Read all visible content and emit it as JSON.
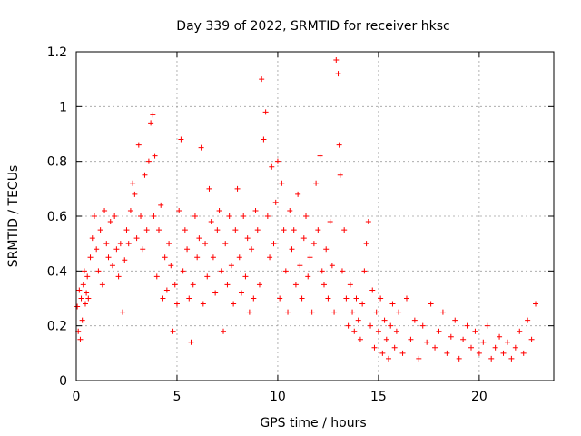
{
  "chart_data": {
    "type": "scatter",
    "title": "Day 339 of 2022, SRMTID for receiver hksc",
    "xlabel": "GPS time / hours",
    "ylabel": "SRMTID / TECUs",
    "xlim": [
      0,
      23.7
    ],
    "ylim": [
      0,
      1.2
    ],
    "xticks": [
      0,
      5,
      10,
      15,
      20
    ],
    "xtick_labels": [
      "0",
      "5",
      "10",
      "15",
      "20"
    ],
    "yticks": [
      0,
      0.2,
      0.4,
      0.6,
      0.8,
      1.0,
      1.2
    ],
    "ytick_labels": [
      "0",
      "0.2",
      "0.4",
      "0.6",
      "0.8",
      "1",
      "1.2"
    ],
    "grid": true,
    "marker": "+",
    "color": "#ff0000",
    "series": [
      {
        "name": "SRMTID",
        "x": [
          0.05,
          0.1,
          0.15,
          0.2,
          0.25,
          0.3,
          0.35,
          0.4,
          0.45,
          0.5,
          0.55,
          0.6,
          0.7,
          0.8,
          0.9,
          1.0,
          1.1,
          1.2,
          1.3,
          1.4,
          1.5,
          1.6,
          1.7,
          1.8,
          1.9,
          2.0,
          2.1,
          2.2,
          2.3,
          2.4,
          2.5,
          2.6,
          2.7,
          2.8,
          2.9,
          3.0,
          3.1,
          3.2,
          3.3,
          3.4,
          3.5,
          3.6,
          3.7,
          3.8,
          3.85,
          3.9,
          4.0,
          4.1,
          4.2,
          4.3,
          4.4,
          4.5,
          4.6,
          4.7,
          4.8,
          4.9,
          5.0,
          5.1,
          5.2,
          5.3,
          5.4,
          5.5,
          5.6,
          5.7,
          5.8,
          5.9,
          6.0,
          6.1,
          6.2,
          6.3,
          6.4,
          6.5,
          6.6,
          6.7,
          6.8,
          6.9,
          7.0,
          7.1,
          7.2,
          7.3,
          7.4,
          7.5,
          7.6,
          7.7,
          7.8,
          7.9,
          8.0,
          8.1,
          8.2,
          8.3,
          8.4,
          8.5,
          8.6,
          8.7,
          8.8,
          8.9,
          9.0,
          9.1,
          9.2,
          9.3,
          9.4,
          9.5,
          9.6,
          9.7,
          9.8,
          9.9,
          10.0,
          10.1,
          10.2,
          10.3,
          10.4,
          10.5,
          10.6,
          10.7,
          10.8,
          10.9,
          11.0,
          11.1,
          11.2,
          11.3,
          11.4,
          11.5,
          11.6,
          11.7,
          11.8,
          11.9,
          12.0,
          12.1,
          12.2,
          12.3,
          12.4,
          12.5,
          12.6,
          12.7,
          12.8,
          12.9,
          13.0,
          13.05,
          13.1,
          13.2,
          13.3,
          13.4,
          13.5,
          13.6,
          13.7,
          13.8,
          13.9,
          14.0,
          14.1,
          14.2,
          14.3,
          14.4,
          14.5,
          14.6,
          14.7,
          14.8,
          14.9,
          15.0,
          15.1,
          15.2,
          15.3,
          15.4,
          15.5,
          15.6,
          15.7,
          15.8,
          15.9,
          16.0,
          16.2,
          16.4,
          16.6,
          16.8,
          17.0,
          17.2,
          17.4,
          17.6,
          17.8,
          18.0,
          18.2,
          18.4,
          18.6,
          18.8,
          19.0,
          19.2,
          19.4,
          19.6,
          19.8,
          20.0,
          20.2,
          20.4,
          20.6,
          20.8,
          21.0,
          21.2,
          21.4,
          21.6,
          21.8,
          22.0,
          22.2,
          22.4,
          22.6,
          22.8
        ],
        "y": [
          0.27,
          0.18,
          0.33,
          0.15,
          0.3,
          0.22,
          0.35,
          0.4,
          0.28,
          0.32,
          0.38,
          0.3,
          0.45,
          0.52,
          0.6,
          0.48,
          0.4,
          0.55,
          0.35,
          0.62,
          0.5,
          0.45,
          0.58,
          0.42,
          0.6,
          0.48,
          0.38,
          0.5,
          0.25,
          0.44,
          0.55,
          0.5,
          0.62,
          0.72,
          0.68,
          0.52,
          0.86,
          0.6,
          0.48,
          0.75,
          0.55,
          0.8,
          0.94,
          0.97,
          0.6,
          0.82,
          0.38,
          0.55,
          0.64,
          0.3,
          0.45,
          0.33,
          0.5,
          0.42,
          0.18,
          0.35,
          0.28,
          0.62,
          0.88,
          0.4,
          0.55,
          0.48,
          0.3,
          0.14,
          0.35,
          0.6,
          0.45,
          0.52,
          0.85,
          0.28,
          0.5,
          0.38,
          0.7,
          0.58,
          0.45,
          0.32,
          0.55,
          0.62,
          0.4,
          0.18,
          0.5,
          0.35,
          0.6,
          0.42,
          0.28,
          0.55,
          0.7,
          0.45,
          0.32,
          0.6,
          0.38,
          0.52,
          0.25,
          0.48,
          0.3,
          0.62,
          0.55,
          0.35,
          1.1,
          0.88,
          0.98,
          0.6,
          0.45,
          0.78,
          0.5,
          0.65,
          0.8,
          0.3,
          0.72,
          0.55,
          0.4,
          0.25,
          0.62,
          0.48,
          0.55,
          0.35,
          0.68,
          0.42,
          0.3,
          0.52,
          0.6,
          0.38,
          0.45,
          0.25,
          0.5,
          0.72,
          0.55,
          0.82,
          0.4,
          0.35,
          0.48,
          0.3,
          0.58,
          0.42,
          0.25,
          1.17,
          1.12,
          0.86,
          0.75,
          0.4,
          0.55,
          0.3,
          0.2,
          0.35,
          0.25,
          0.18,
          0.3,
          0.22,
          0.15,
          0.28,
          0.4,
          0.5,
          0.58,
          0.2,
          0.33,
          0.12,
          0.25,
          0.18,
          0.3,
          0.1,
          0.22,
          0.15,
          0.08,
          0.2,
          0.28,
          0.12,
          0.18,
          0.25,
          0.1,
          0.3,
          0.15,
          0.22,
          0.08,
          0.2,
          0.14,
          0.28,
          0.12,
          0.18,
          0.25,
          0.1,
          0.16,
          0.22,
          0.08,
          0.15,
          0.2,
          0.12,
          0.18,
          0.1,
          0.14,
          0.2,
          0.08,
          0.12,
          0.16,
          0.1,
          0.14,
          0.08,
          0.12,
          0.18,
          0.1,
          0.22,
          0.15,
          0.28
        ]
      }
    ]
  }
}
